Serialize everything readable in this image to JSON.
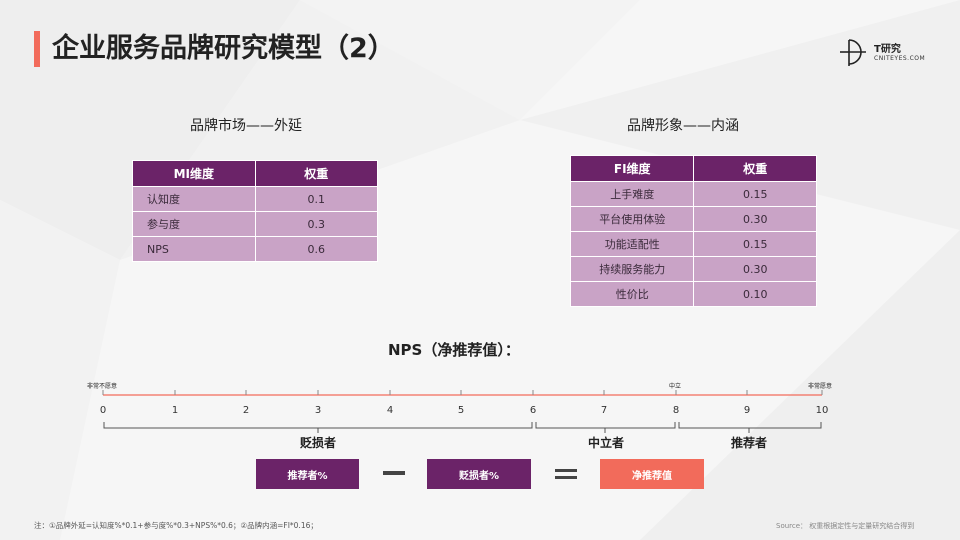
{
  "page": {
    "title": "企业服务品牌研究模型（2）",
    "accent_color": "#f26b5b",
    "primary_color": "#6b2368",
    "cell_color": "#c9a3c6"
  },
  "logo": {
    "name": "T研究",
    "url": "CNITEYES.COM",
    "icon": "t-research-logo-icon"
  },
  "market": {
    "title": "品牌市场——外延",
    "headers": [
      "MI维度",
      "权重"
    ],
    "rows": [
      {
        "name": "认知度",
        "weight": "0.1"
      },
      {
        "name": "参与度",
        "weight": "0.3"
      },
      {
        "name": "NPS",
        "weight": "0.6"
      }
    ]
  },
  "image": {
    "title": "品牌形象——内涵",
    "headers": [
      "FI维度",
      "权重"
    ],
    "rows": [
      {
        "name": "上手难度",
        "weight": "0.15"
      },
      {
        "name": "平台使用体验",
        "weight": "0.30"
      },
      {
        "name": "功能适配性",
        "weight": "0.15"
      },
      {
        "name": "持续服务能力",
        "weight": "0.30"
      },
      {
        "name": "性价比",
        "weight": "0.10"
      }
    ]
  },
  "nps": {
    "title": "NPS（净推荐值）：",
    "scale": [
      "0",
      "1",
      "2",
      "3",
      "4",
      "5",
      "6",
      "7",
      "8",
      "9",
      "10"
    ],
    "labels": {
      "left": "非常不愿意",
      "middle": "中立",
      "right": "非常愿意"
    },
    "groups": {
      "detractors": "贬损者",
      "passives": "中立者",
      "promoters": "推荐者"
    },
    "formula": {
      "promoters_pct": "推荐者%",
      "detractors_pct": "贬损者%",
      "result": "净推荐值"
    }
  },
  "footer": {
    "note": "注：①品牌外延=认知度%*0.1+参与度%*0.3+NPS%*0.6；②品牌内涵=FI*0.16；",
    "source": "Source：   权重根据定性与定量研究结合得到"
  }
}
